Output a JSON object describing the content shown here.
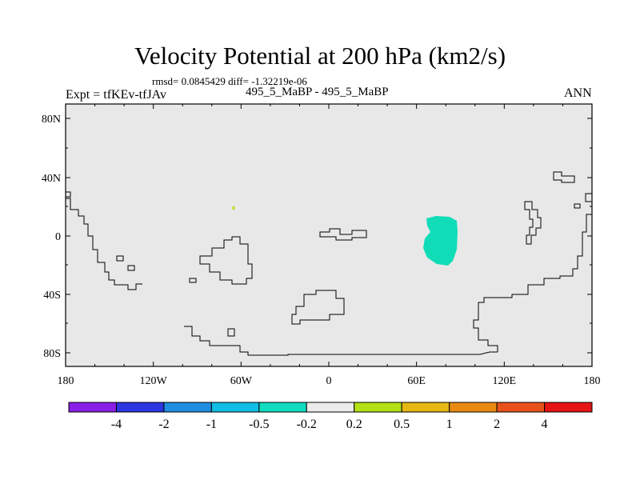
{
  "title": "Velocity Potential at 200 hPa (km2/s)",
  "rmsd_line": "rmsd= 0.0845429 diff= -1.32219e-06",
  "subtitle": "495_5_MaBP - 495_5_MaBP",
  "left_label": "Expt = tfKEv-tfJAv",
  "right_label": "ANN",
  "lat_labels": [
    "80N",
    "40N",
    "0",
    "40S",
    "80S"
  ],
  "lon_labels": [
    "180",
    "120W",
    "60W",
    "0",
    "60E",
    "120E",
    "180"
  ],
  "colorbar": {
    "colors": [
      "#8a1ee6",
      "#2b35e0",
      "#1f8ee0",
      "#12bde6",
      "#10dcc0",
      "#ebebeb",
      "#b4e016",
      "#e6b814",
      "#ea8a12",
      "#e8521a",
      "#e61414"
    ],
    "labels": [
      "-4",
      "-2",
      "-1",
      "-0.5",
      "-0.2",
      "0.2",
      "0.5",
      "1",
      "2",
      "4"
    ]
  },
  "map": {
    "background_color": "#e8e8e8",
    "anomaly_color": "#10dcb8",
    "small_dot_color": "#b4e016"
  }
}
